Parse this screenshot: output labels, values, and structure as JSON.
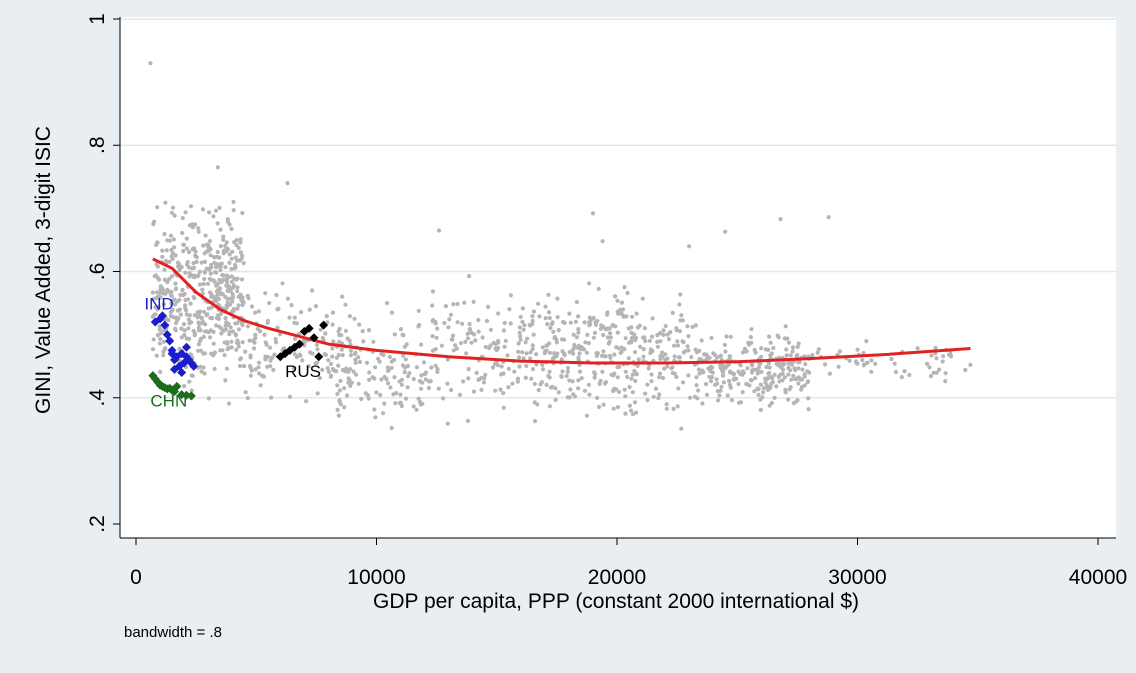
{
  "chart_data": {
    "type": "scatter",
    "title": "",
    "xlabel": "GDP per capita, PPP (constant 2000 international $)",
    "ylabel": "GINI, Value Added, 3-digit ISIC",
    "note": "bandwidth = .8",
    "xlim": [
      -1000,
      41000
    ],
    "ylim": [
      0.18,
      1.0
    ],
    "xticks": [
      0,
      10000,
      20000,
      30000,
      40000
    ],
    "xtick_labels": [
      "0",
      "10000",
      "20000",
      "30000",
      "40000"
    ],
    "yticks": [
      0.2,
      0.4,
      0.6,
      0.8,
      1
    ],
    "ytick_labels": [
      ".2",
      ".4",
      ".6",
      ".8",
      "1"
    ],
    "grid": "horizontal",
    "colors": {
      "background": "#e8eef2",
      "plot_area": "#ffffff",
      "gridline": "#dfe8ee",
      "all_countries": "#b5b5b5",
      "lowess": "#e32121",
      "IND": "#1c1ccf",
      "CHN": "#1d6b1d",
      "RUS": "#000000"
    },
    "lowess": {
      "name": "lowess",
      "x": [
        700,
        1500,
        2500,
        3500,
        4500,
        5500,
        6500,
        8000,
        10000,
        13000,
        16000,
        19000,
        22000,
        25000,
        28000,
        31000,
        34700
      ],
      "y": [
        0.62,
        0.605,
        0.567,
        0.54,
        0.522,
        0.51,
        0.5,
        0.485,
        0.475,
        0.465,
        0.458,
        0.455,
        0.455,
        0.457,
        0.462,
        0.468,
        0.478
      ]
    },
    "highlight_labels": [
      {
        "text": "IND",
        "x": 350,
        "y": 0.54,
        "color": "IND"
      },
      {
        "text": "CHN",
        "x": 600,
        "y": 0.386,
        "color": "CHN"
      },
      {
        "text": "RUS",
        "x": 6200,
        "y": 0.433,
        "color": "RUS"
      }
    ],
    "highlight_series": [
      {
        "name": "IND",
        "color": "IND",
        "x": [
          800,
          1000,
          1100,
          1200,
          1300,
          1400,
          1500,
          1600,
          1700,
          1800,
          1900,
          2000,
          2100,
          2200,
          2300,
          1600,
          1900,
          2100,
          2400,
          1500
        ],
        "y": [
          0.52,
          0.525,
          0.53,
          0.515,
          0.5,
          0.49,
          0.47,
          0.46,
          0.465,
          0.45,
          0.47,
          0.455,
          0.48,
          0.46,
          0.455,
          0.445,
          0.44,
          0.465,
          0.45,
          0.475
        ]
      },
      {
        "name": "CHN",
        "color": "CHN",
        "x": [
          700,
          800,
          900,
          1000,
          1100,
          1200,
          1300,
          1400,
          1500,
          1600,
          1700,
          1900,
          2100,
          2300
        ],
        "y": [
          0.435,
          0.43,
          0.425,
          0.42,
          0.418,
          0.416,
          0.414,
          0.415,
          0.412,
          0.41,
          0.418,
          0.405,
          0.404,
          0.403
        ]
      },
      {
        "name": "RUS",
        "color": "RUS",
        "x": [
          6000,
          6200,
          6400,
          6600,
          6800,
          7000,
          7200,
          7400,
          7600,
          7800
        ],
        "y": [
          0.465,
          0.47,
          0.475,
          0.48,
          0.485,
          0.505,
          0.51,
          0.495,
          0.465,
          0.515
        ]
      }
    ],
    "outliers": {
      "x": [
        600,
        3400,
        6300,
        12600,
        19000,
        19400,
        23000,
        24500,
        26800,
        28800
      ],
      "y": [
        0.93,
        0.765,
        0.74,
        0.665,
        0.692,
        0.648,
        0.64,
        0.663,
        0.683,
        0.686
      ]
    },
    "scatter_clusters": [
      {
        "x": [
          700,
          4500
        ],
        "y": [
          0.42,
          0.73
        ],
        "n": 420
      },
      {
        "x": [
          1500,
          9000
        ],
        "y": [
          0.36,
          0.61
        ],
        "n": 220
      },
      {
        "x": [
          8000,
          12000
        ],
        "y": [
          0.33,
          0.56
        ],
        "n": 130
      },
      {
        "x": [
          12000,
          17000
        ],
        "y": [
          0.34,
          0.61
        ],
        "n": 170
      },
      {
        "x": [
          17000,
          23000
        ],
        "y": [
          0.34,
          0.6
        ],
        "n": 330
      },
      {
        "x": [
          23000,
          28000
        ],
        "y": [
          0.36,
          0.53
        ],
        "n": 260
      },
      {
        "x": [
          28000,
          34800
        ],
        "y": [
          0.42,
          0.5
        ],
        "n": 55
      }
    ]
  }
}
